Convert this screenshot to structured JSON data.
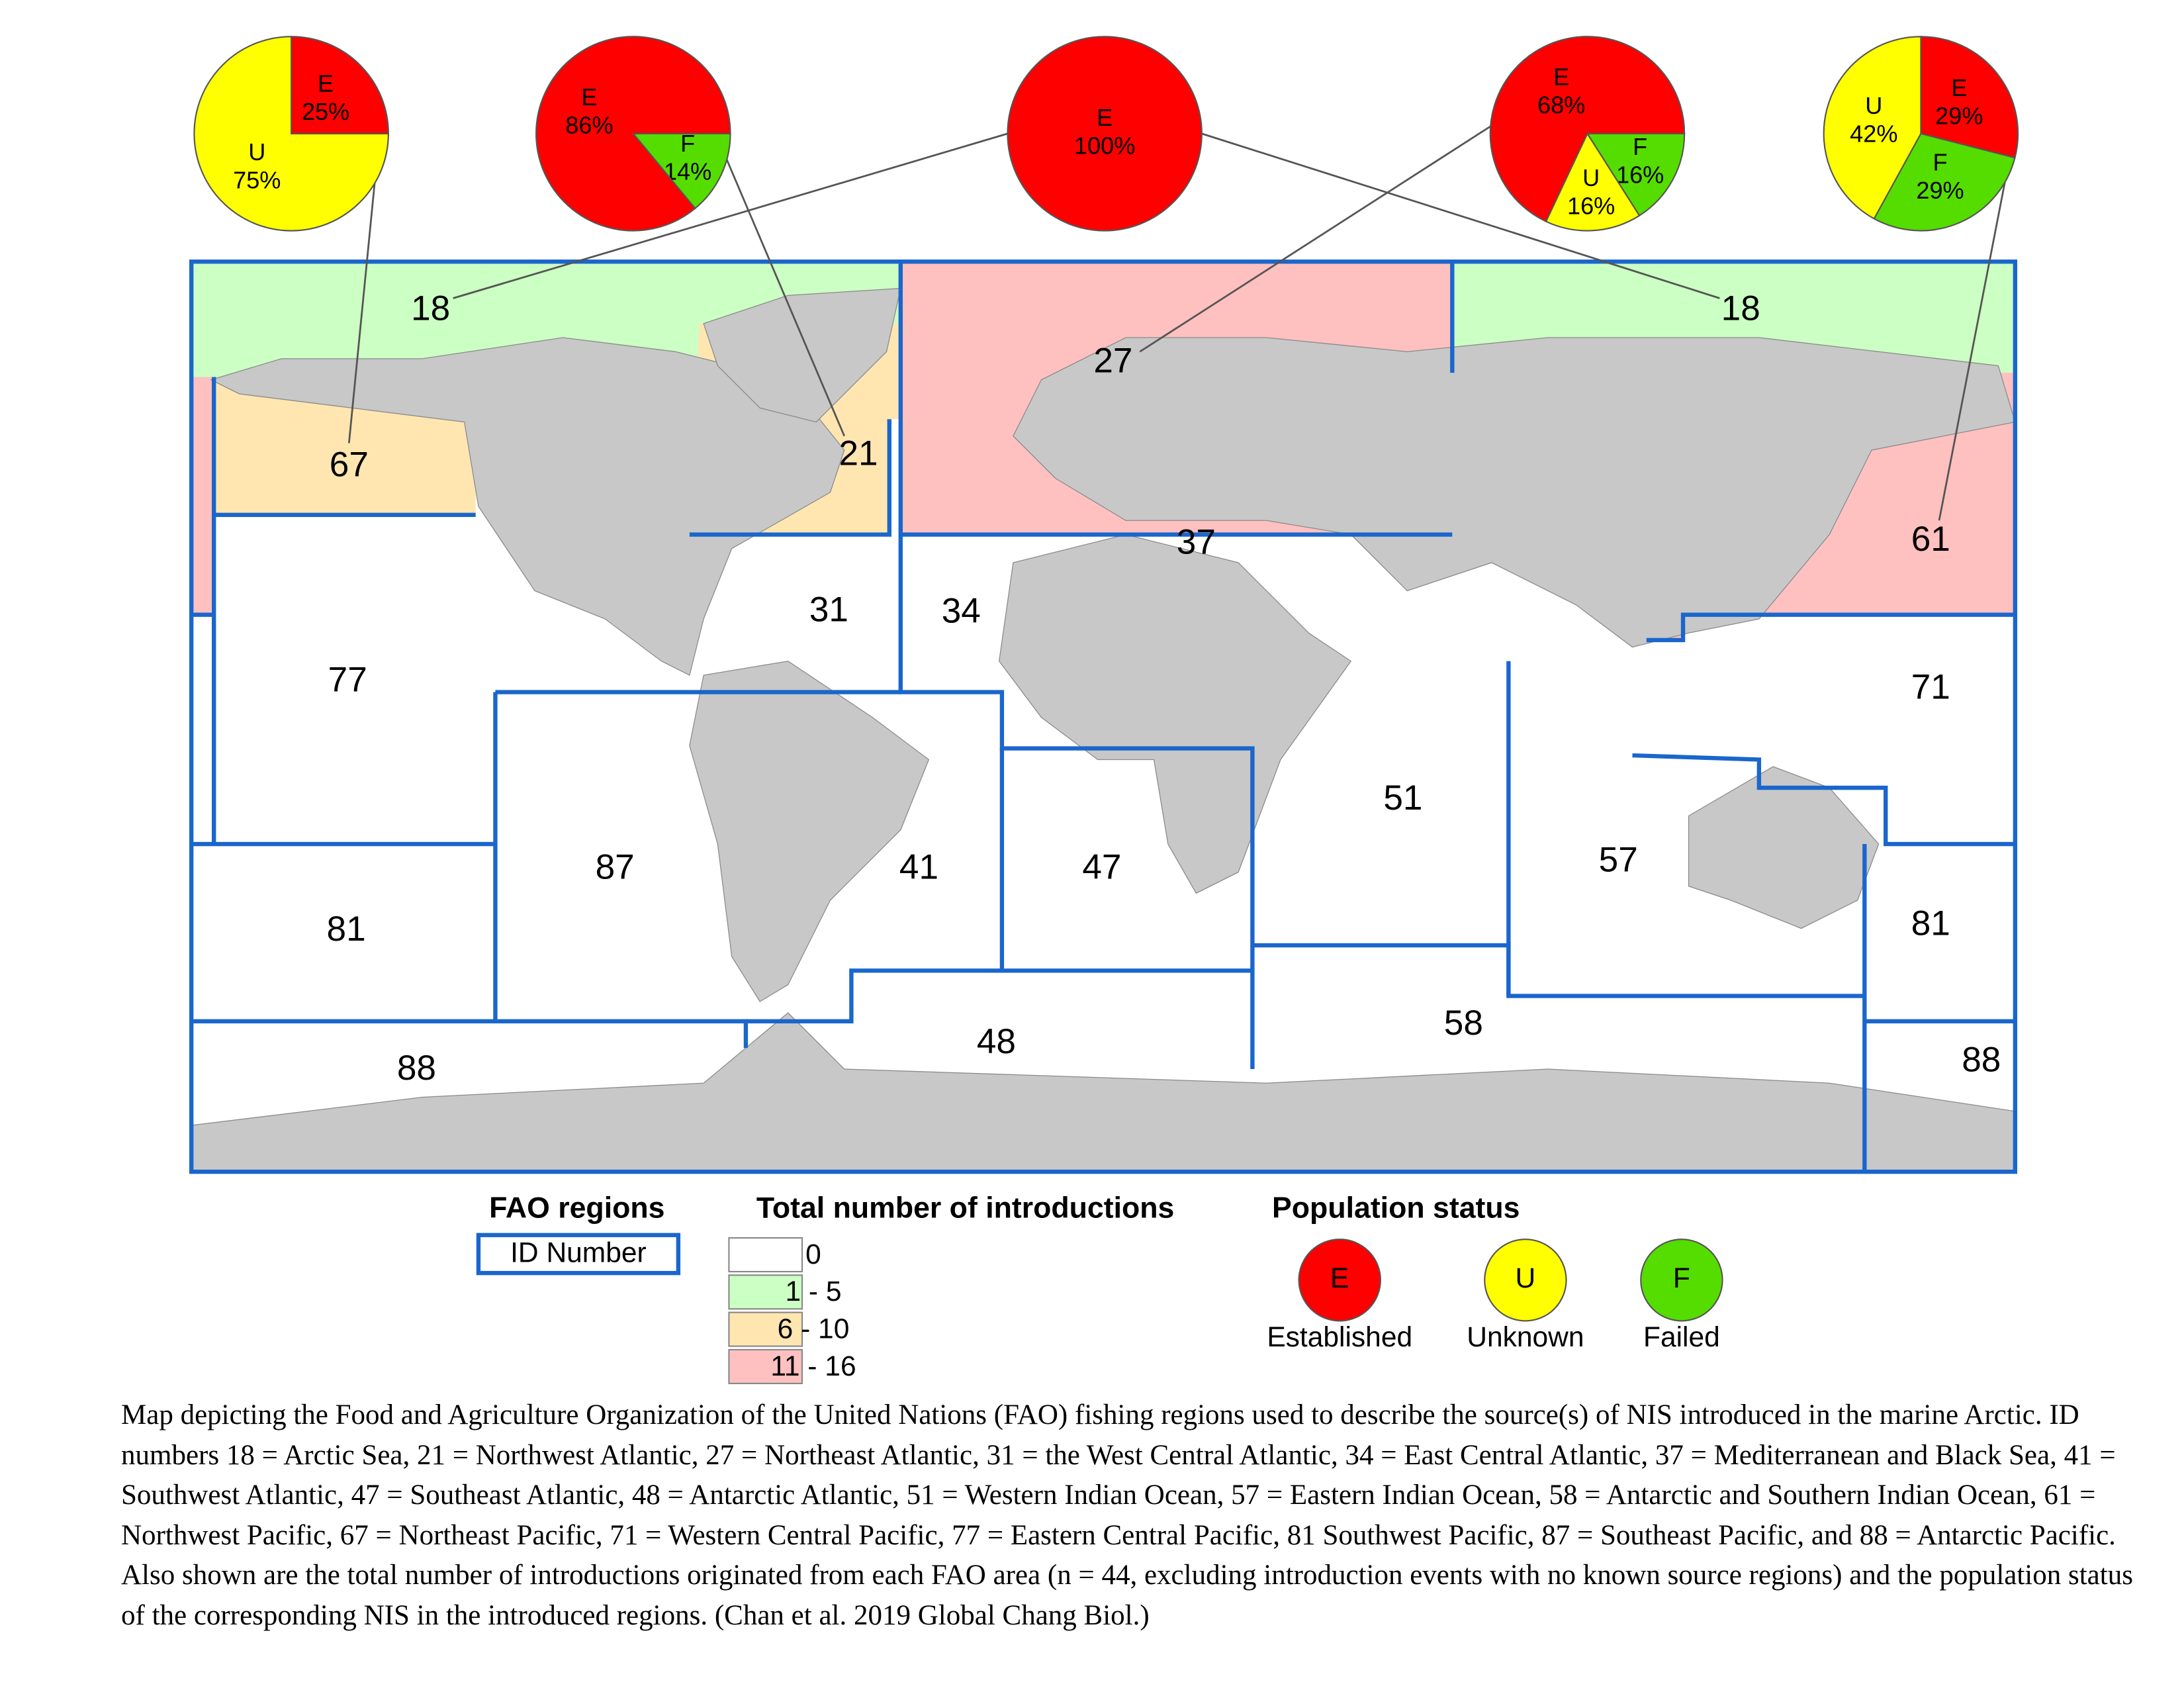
{
  "pies": [
    {
      "slices": [
        {
          "status": "E",
          "value": 25,
          "label": "25%"
        },
        {
          "status": "U",
          "value": 75,
          "label": "75%"
        }
      ]
    },
    {
      "slices": [
        {
          "status": "F",
          "value": 14,
          "label": "14%"
        },
        {
          "status": "E",
          "value": 86,
          "label": "86%"
        }
      ]
    },
    {
      "slices": [
        {
          "status": "E",
          "value": 100,
          "label": "100%"
        }
      ]
    },
    {
      "slices": [
        {
          "status": "F",
          "value": 16,
          "label": "16%"
        },
        {
          "status": "U",
          "value": 16,
          "label": "16%"
        },
        {
          "status": "E",
          "value": 68,
          "label": "68%"
        }
      ]
    },
    {
      "slices": [
        {
          "status": "E",
          "value": 29,
          "label": "29%"
        },
        {
          "status": "F",
          "value": 29,
          "label": "29%"
        },
        {
          "status": "U",
          "value": 42,
          "label": "42%"
        }
      ]
    }
  ],
  "regions": [
    "18",
    "18",
    "27",
    "67",
    "21",
    "37",
    "61",
    "31",
    "34",
    "77",
    "71",
    "51",
    "87",
    "41",
    "47",
    "57",
    "81",
    "81",
    "58",
    "48",
    "88",
    "88"
  ],
  "legend": {
    "fao": {
      "title": "FAO regions",
      "item": "ID Number"
    },
    "introductions": {
      "title": "Total number of introductions",
      "items": [
        {
          "label": "0",
          "color": "#ffffff"
        },
        {
          "label": "1 - 5",
          "color": "#ccffc4"
        },
        {
          "label": "6 - 10",
          "color": "#ffe6b0"
        },
        {
          "label": "11 - 16",
          "color": "#ffc0c0"
        }
      ]
    },
    "population_status": {
      "title": "Population status",
      "items": [
        {
          "letter": "E",
          "label": "Established",
          "color": "#ff0000"
        },
        {
          "letter": "U",
          "label": "Unknown",
          "color": "#ffff00"
        },
        {
          "letter": "F",
          "label": "Failed",
          "color": "#55dd00"
        }
      ]
    }
  },
  "caption": "Map depicting the Food and Agriculture Organization of the United Nations (FAO) fishing regions used to describe the source(s) of NIS introduced in the marine Arctic. ID numbers 18 = Arctic Sea, 21 = Northwest Atlantic, 27 = Northeast Atlantic, 31 = the West Central Atlantic, 34 =  East Central Atlantic, 37 = Mediterranean and Black Sea, 41 =  Southwest Atlantic, 47 =  Southeast Atlantic, 48 = Antarctic Atlantic, 51 = Western Indian Ocean, 57 =  Eastern Indian Ocean, 58 = Antarctic and Southern Indian Ocean, 61 = Northwest Pacific, 67 = Northeast Pacific, 71 = Western Central Pacific, 77 = Eastern Central Pacific, 81 Southwest Pacific, 87 = Southeast Pacific, and 88 = Antarctic Pacific. Also shown are the total number of introductions originated from each FAO area (n = 44, excluding introduction events with no known source regions) and the population status of the corresponding NIS in the introduced regions. (Chan et al. 2019 Global Chang Biol.)"
}
